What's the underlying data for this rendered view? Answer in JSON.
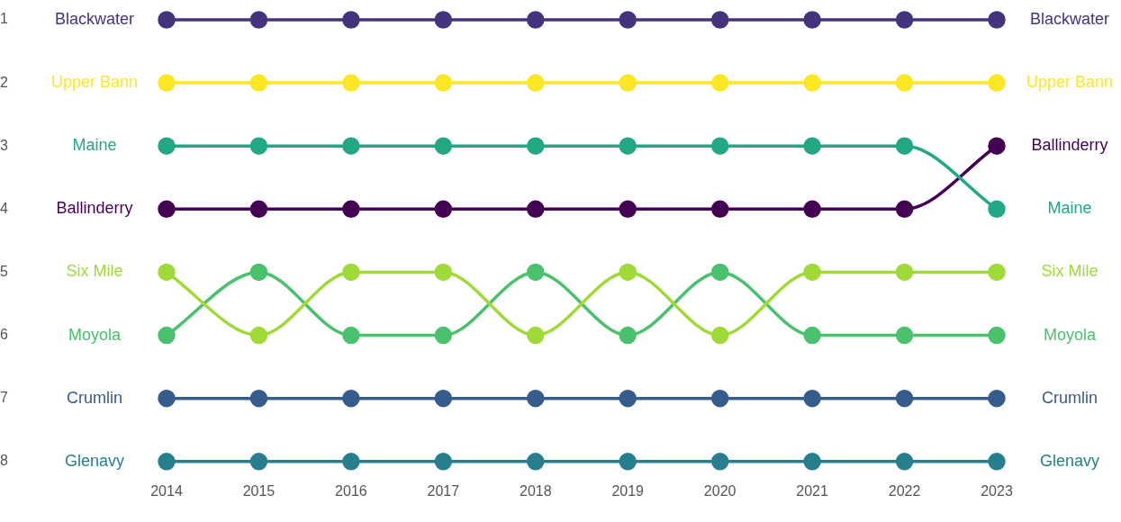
{
  "chart_data": {
    "type": "line",
    "categories": [
      "2014",
      "2015",
      "2016",
      "2017",
      "2018",
      "2019",
      "2020",
      "2021",
      "2022",
      "2023"
    ],
    "ylim": [
      8,
      1
    ],
    "yticks": [
      1,
      2,
      3,
      4,
      5,
      6,
      7,
      8
    ],
    "grid": false,
    "legend": false,
    "marker": "circle",
    "line_style": "solid",
    "series": [
      {
        "name": "Blackwater",
        "color": "#46337e",
        "values": [
          1,
          1,
          1,
          1,
          1,
          1,
          1,
          1,
          1,
          1
        ]
      },
      {
        "name": "Upper Bann",
        "color": "#fde725",
        "values": [
          2,
          2,
          2,
          2,
          2,
          2,
          2,
          2,
          2,
          2
        ]
      },
      {
        "name": "Maine",
        "color": "#22a884",
        "values": [
          3,
          3,
          3,
          3,
          3,
          3,
          3,
          3,
          3,
          4
        ]
      },
      {
        "name": "Ballinderry",
        "color": "#440154",
        "values": [
          4,
          4,
          4,
          4,
          4,
          4,
          4,
          4,
          4,
          3
        ]
      },
      {
        "name": "Six Mile",
        "color": "#a0da39",
        "values": [
          5,
          6,
          5,
          5,
          6,
          5,
          6,
          5,
          5,
          5
        ]
      },
      {
        "name": "Moyola",
        "color": "#4ac16d",
        "values": [
          6,
          5,
          6,
          6,
          5,
          6,
          5,
          6,
          6,
          6
        ]
      },
      {
        "name": "Crumlin",
        "color": "#365c8d",
        "values": [
          7,
          7,
          7,
          7,
          7,
          7,
          7,
          7,
          7,
          7
        ]
      },
      {
        "name": "Glenavy",
        "color": "#277f8e",
        "values": [
          8,
          8,
          8,
          8,
          8,
          8,
          8,
          8,
          8,
          8
        ]
      }
    ]
  }
}
